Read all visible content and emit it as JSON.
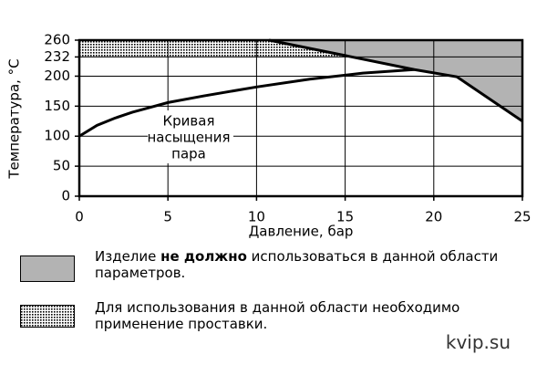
{
  "chart_data": {
    "type": "line",
    "x_label": "Давление, бар",
    "y_label": "Температура, °C",
    "xlim": [
      0,
      25
    ],
    "ylim": [
      0,
      260
    ],
    "xticks": [
      0,
      5,
      10,
      15,
      20,
      25
    ],
    "yticks": [
      0,
      50,
      100,
      150,
      200,
      232,
      260
    ],
    "grid": true,
    "saturation_curve": {
      "x": [
        0,
        1,
        2,
        3,
        4,
        5,
        7,
        10,
        13,
        16,
        18.9
      ],
      "y": [
        100,
        118,
        130,
        140,
        148,
        156,
        167,
        182,
        195,
        205,
        211
      ],
      "color": "#000000"
    },
    "limit_line": {
      "x": [
        10.7,
        18.9,
        21.3,
        25
      ],
      "y": [
        260,
        211,
        199,
        125
      ],
      "color": "#000000",
      "fill": "#b3b3b3"
    },
    "spacer_zone": [
      232,
      260
    ],
    "annotation": [
      "Кривая",
      "насыщения",
      "пара"
    ],
    "legend": [
      {
        "before": "Изделие ",
        "bold": "не должно",
        "after": " использоваться в данной области параметров.",
        "fill": "#b3b3b3"
      },
      {
        "text": "Для использования в данной области необходимо применение проставки."
      }
    ]
  },
  "watermark": "kvip.su"
}
